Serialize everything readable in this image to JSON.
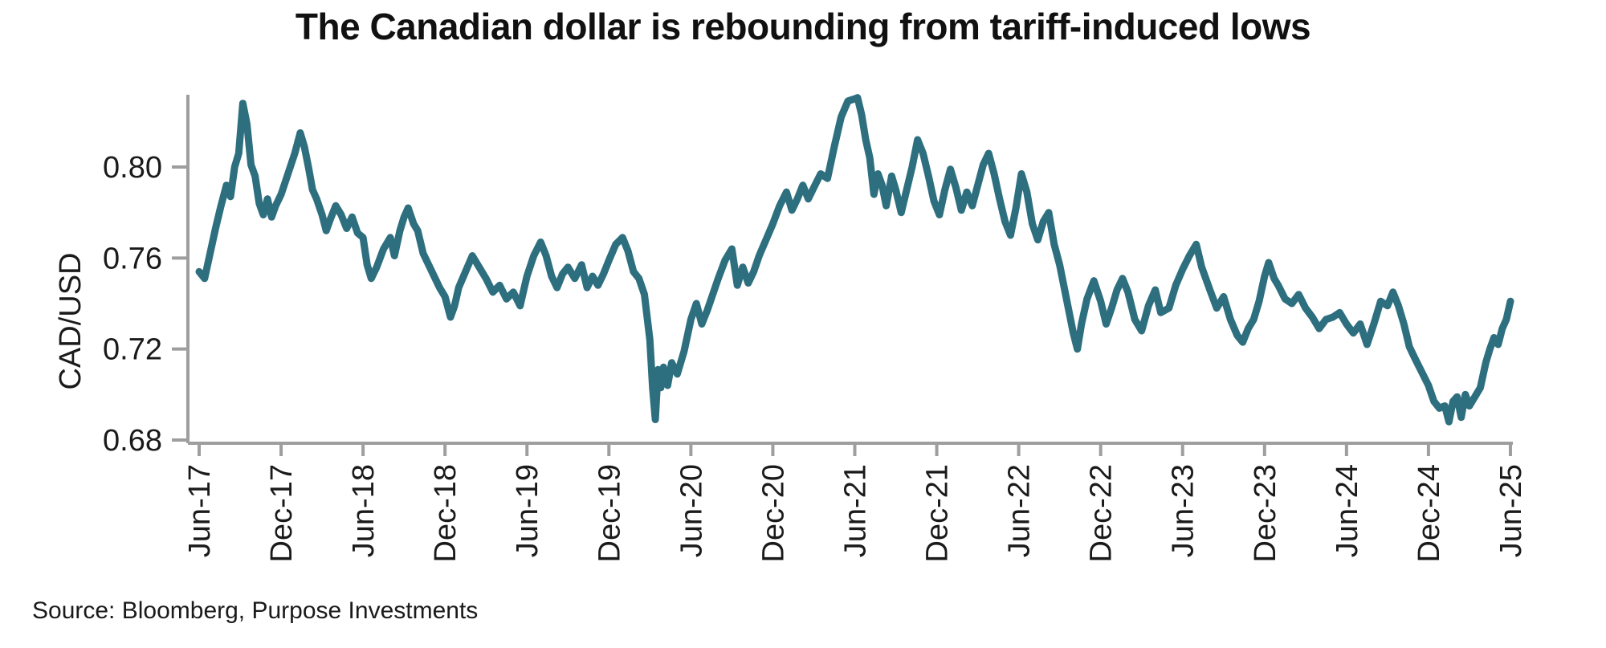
{
  "title": "The Canadian dollar is rebounding from tariff-induced lows",
  "source": "Source: Bloomberg, Purpose Investments",
  "colors": {
    "line": "#2e6f7f",
    "axis": "#9e9e9e",
    "text": "#1a1a1a"
  },
  "chart_data": {
    "type": "line",
    "title": "The Canadian dollar is rebounding from tariff-induced lows",
    "xlabel": "",
    "ylabel": "CAD/USD",
    "legend_position": "none",
    "grid": false,
    "ylim": [
      0.68,
      0.832
    ],
    "y_ticks": [
      0.68,
      0.72,
      0.76,
      0.8
    ],
    "y_tick_labels": [
      "0.68",
      "0.72",
      "0.76",
      "0.80"
    ],
    "x_unit": "months since Jun-2017",
    "xlim": [
      0,
      96
    ],
    "x_tick_months": [
      0,
      6,
      12,
      18,
      24,
      30,
      36,
      42,
      48,
      54,
      60,
      66,
      72,
      78,
      84,
      90,
      96
    ],
    "x_tick_labels": [
      "Jun-17",
      "Dec-17",
      "Jun-18",
      "Dec-18",
      "Jun-19",
      "Dec-19",
      "Jun-20",
      "Dec-20",
      "Jun-21",
      "Dec-21",
      "Jun-22",
      "Dec-22",
      "Jun-23",
      "Dec-23",
      "Jun-24",
      "Dec-24",
      "Jun-25"
    ],
    "series": [
      {
        "name": "CAD/USD",
        "color": "#2e6f7f",
        "points": [
          [
            0,
            0.754
          ],
          [
            0.4,
            0.751
          ],
          [
            0.8,
            0.762
          ],
          [
            1.2,
            0.773
          ],
          [
            1.6,
            0.783
          ],
          [
            2,
            0.792
          ],
          [
            2.3,
            0.787
          ],
          [
            2.6,
            0.8
          ],
          [
            2.9,
            0.806
          ],
          [
            3.2,
            0.828
          ],
          [
            3.5,
            0.819
          ],
          [
            3.8,
            0.801
          ],
          [
            4.1,
            0.796
          ],
          [
            4.4,
            0.784
          ],
          [
            4.7,
            0.779
          ],
          [
            5,
            0.786
          ],
          [
            5.3,
            0.778
          ],
          [
            5.6,
            0.783
          ],
          [
            6,
            0.788
          ],
          [
            6.5,
            0.797
          ],
          [
            7,
            0.806
          ],
          [
            7.4,
            0.815
          ],
          [
            7.7,
            0.809
          ],
          [
            8,
            0.8
          ],
          [
            8.3,
            0.79
          ],
          [
            8.6,
            0.786
          ],
          [
            9,
            0.779
          ],
          [
            9.3,
            0.772
          ],
          [
            9.6,
            0.777
          ],
          [
            10,
            0.783
          ],
          [
            10.4,
            0.779
          ],
          [
            10.8,
            0.773
          ],
          [
            11.2,
            0.778
          ],
          [
            11.6,
            0.771
          ],
          [
            12,
            0.769
          ],
          [
            12.3,
            0.757
          ],
          [
            12.6,
            0.751
          ],
          [
            13,
            0.756
          ],
          [
            13.5,
            0.764
          ],
          [
            14,
            0.769
          ],
          [
            14.3,
            0.761
          ],
          [
            14.7,
            0.772
          ],
          [
            15,
            0.778
          ],
          [
            15.3,
            0.782
          ],
          [
            15.7,
            0.775
          ],
          [
            16,
            0.772
          ],
          [
            16.4,
            0.762
          ],
          [
            16.8,
            0.757
          ],
          [
            17.2,
            0.752
          ],
          [
            17.6,
            0.747
          ],
          [
            18,
            0.743
          ],
          [
            18.4,
            0.734
          ],
          [
            18.7,
            0.739
          ],
          [
            19,
            0.747
          ],
          [
            19.5,
            0.754
          ],
          [
            20,
            0.761
          ],
          [
            20.5,
            0.756
          ],
          [
            21,
            0.751
          ],
          [
            21.5,
            0.745
          ],
          [
            22,
            0.748
          ],
          [
            22.5,
            0.742
          ],
          [
            23,
            0.745
          ],
          [
            23.5,
            0.739
          ],
          [
            24,
            0.752
          ],
          [
            24.5,
            0.761
          ],
          [
            25,
            0.767
          ],
          [
            25.4,
            0.761
          ],
          [
            25.8,
            0.752
          ],
          [
            26.2,
            0.747
          ],
          [
            26.6,
            0.753
          ],
          [
            27,
            0.756
          ],
          [
            27.5,
            0.751
          ],
          [
            28,
            0.757
          ],
          [
            28.4,
            0.747
          ],
          [
            28.8,
            0.752
          ],
          [
            29.2,
            0.748
          ],
          [
            29.6,
            0.753
          ],
          [
            30,
            0.759
          ],
          [
            30.5,
            0.766
          ],
          [
            31,
            0.769
          ],
          [
            31.4,
            0.763
          ],
          [
            31.8,
            0.754
          ],
          [
            32.2,
            0.751
          ],
          [
            32.6,
            0.744
          ],
          [
            33,
            0.724
          ],
          [
            33.2,
            0.703
          ],
          [
            33.4,
            0.689
          ],
          [
            33.6,
            0.711
          ],
          [
            33.8,
            0.703
          ],
          [
            34,
            0.712
          ],
          [
            34.3,
            0.704
          ],
          [
            34.6,
            0.714
          ],
          [
            35,
            0.709
          ],
          [
            35.5,
            0.719
          ],
          [
            36,
            0.733
          ],
          [
            36.4,
            0.74
          ],
          [
            36.8,
            0.731
          ],
          [
            37.2,
            0.737
          ],
          [
            37.6,
            0.744
          ],
          [
            38,
            0.751
          ],
          [
            38.5,
            0.759
          ],
          [
            39,
            0.764
          ],
          [
            39.4,
            0.748
          ],
          [
            39.8,
            0.756
          ],
          [
            40.2,
            0.749
          ],
          [
            40.6,
            0.754
          ],
          [
            41,
            0.761
          ],
          [
            41.5,
            0.768
          ],
          [
            42,
            0.775
          ],
          [
            42.5,
            0.783
          ],
          [
            43,
            0.789
          ],
          [
            43.4,
            0.781
          ],
          [
            43.8,
            0.786
          ],
          [
            44.2,
            0.792
          ],
          [
            44.6,
            0.786
          ],
          [
            45,
            0.791
          ],
          [
            45.5,
            0.797
          ],
          [
            46,
            0.795
          ],
          [
            46.5,
            0.809
          ],
          [
            47,
            0.822
          ],
          [
            47.5,
            0.829
          ],
          [
            48,
            0.83
          ],
          [
            48.2,
            0.8305
          ],
          [
            48.5,
            0.823
          ],
          [
            48.8,
            0.812
          ],
          [
            49.1,
            0.804
          ],
          [
            49.4,
            0.788
          ],
          [
            49.7,
            0.797
          ],
          [
            50,
            0.792
          ],
          [
            50.3,
            0.783
          ],
          [
            50.7,
            0.796
          ],
          [
            51,
            0.79
          ],
          [
            51.4,
            0.78
          ],
          [
            51.8,
            0.79
          ],
          [
            52.2,
            0.8
          ],
          [
            52.6,
            0.812
          ],
          [
            53,
            0.806
          ],
          [
            53.4,
            0.796
          ],
          [
            53.8,
            0.785
          ],
          [
            54.2,
            0.779
          ],
          [
            54.6,
            0.79
          ],
          [
            55,
            0.799
          ],
          [
            55.4,
            0.791
          ],
          [
            55.8,
            0.781
          ],
          [
            56.2,
            0.789
          ],
          [
            56.6,
            0.783
          ],
          [
            57,
            0.792
          ],
          [
            57.4,
            0.801
          ],
          [
            57.8,
            0.806
          ],
          [
            58.2,
            0.797
          ],
          [
            58.6,
            0.786
          ],
          [
            59,
            0.776
          ],
          [
            59.4,
            0.77
          ],
          [
            59.8,
            0.782
          ],
          [
            60.2,
            0.797
          ],
          [
            60.6,
            0.789
          ],
          [
            61,
            0.775
          ],
          [
            61.4,
            0.768
          ],
          [
            61.8,
            0.776
          ],
          [
            62.2,
            0.78
          ],
          [
            62.6,
            0.766
          ],
          [
            63,
            0.757
          ],
          [
            63.5,
            0.742
          ],
          [
            64,
            0.727
          ],
          [
            64.3,
            0.72
          ],
          [
            64.6,
            0.731
          ],
          [
            65,
            0.742
          ],
          [
            65.5,
            0.75
          ],
          [
            66,
            0.741
          ],
          [
            66.4,
            0.731
          ],
          [
            66.8,
            0.738
          ],
          [
            67.2,
            0.746
          ],
          [
            67.6,
            0.751
          ],
          [
            68,
            0.745
          ],
          [
            68.5,
            0.733
          ],
          [
            69,
            0.728
          ],
          [
            69.5,
            0.739
          ],
          [
            70,
            0.746
          ],
          [
            70.4,
            0.736
          ],
          [
            71,
            0.738
          ],
          [
            71.5,
            0.748
          ],
          [
            72,
            0.755
          ],
          [
            72.5,
            0.761
          ],
          [
            73,
            0.766
          ],
          [
            73.4,
            0.756
          ],
          [
            74,
            0.746
          ],
          [
            74.5,
            0.738
          ],
          [
            75,
            0.743
          ],
          [
            75.5,
            0.733
          ],
          [
            76,
            0.726
          ],
          [
            76.4,
            0.723
          ],
          [
            76.8,
            0.729
          ],
          [
            77.2,
            0.733
          ],
          [
            77.6,
            0.741
          ],
          [
            78,
            0.752
          ],
          [
            78.3,
            0.758
          ],
          [
            78.7,
            0.751
          ],
          [
            79,
            0.748
          ],
          [
            79.5,
            0.742
          ],
          [
            80,
            0.74
          ],
          [
            80.5,
            0.744
          ],
          [
            81,
            0.738
          ],
          [
            81.5,
            0.734
          ],
          [
            82,
            0.729
          ],
          [
            82.5,
            0.733
          ],
          [
            83,
            0.734
          ],
          [
            83.5,
            0.736
          ],
          [
            84,
            0.731
          ],
          [
            84.5,
            0.727
          ],
          [
            85,
            0.731
          ],
          [
            85.5,
            0.722
          ],
          [
            86,
            0.731
          ],
          [
            86.5,
            0.741
          ],
          [
            87,
            0.739
          ],
          [
            87.4,
            0.745
          ],
          [
            87.8,
            0.739
          ],
          [
            88.2,
            0.731
          ],
          [
            88.6,
            0.721
          ],
          [
            89,
            0.716
          ],
          [
            89.5,
            0.71
          ],
          [
            90,
            0.704
          ],
          [
            90.4,
            0.697
          ],
          [
            90.8,
            0.694
          ],
          [
            91.2,
            0.695
          ],
          [
            91.5,
            0.688
          ],
          [
            91.8,
            0.697
          ],
          [
            92.1,
            0.699
          ],
          [
            92.4,
            0.69
          ],
          [
            92.7,
            0.7
          ],
          [
            93,
            0.695
          ],
          [
            93.4,
            0.699
          ],
          [
            93.8,
            0.703
          ],
          [
            94.2,
            0.714
          ],
          [
            94.5,
            0.72
          ],
          [
            94.8,
            0.725
          ],
          [
            95.1,
            0.722
          ],
          [
            95.4,
            0.729
          ],
          [
            95.7,
            0.733
          ],
          [
            96,
            0.741
          ]
        ]
      }
    ]
  }
}
